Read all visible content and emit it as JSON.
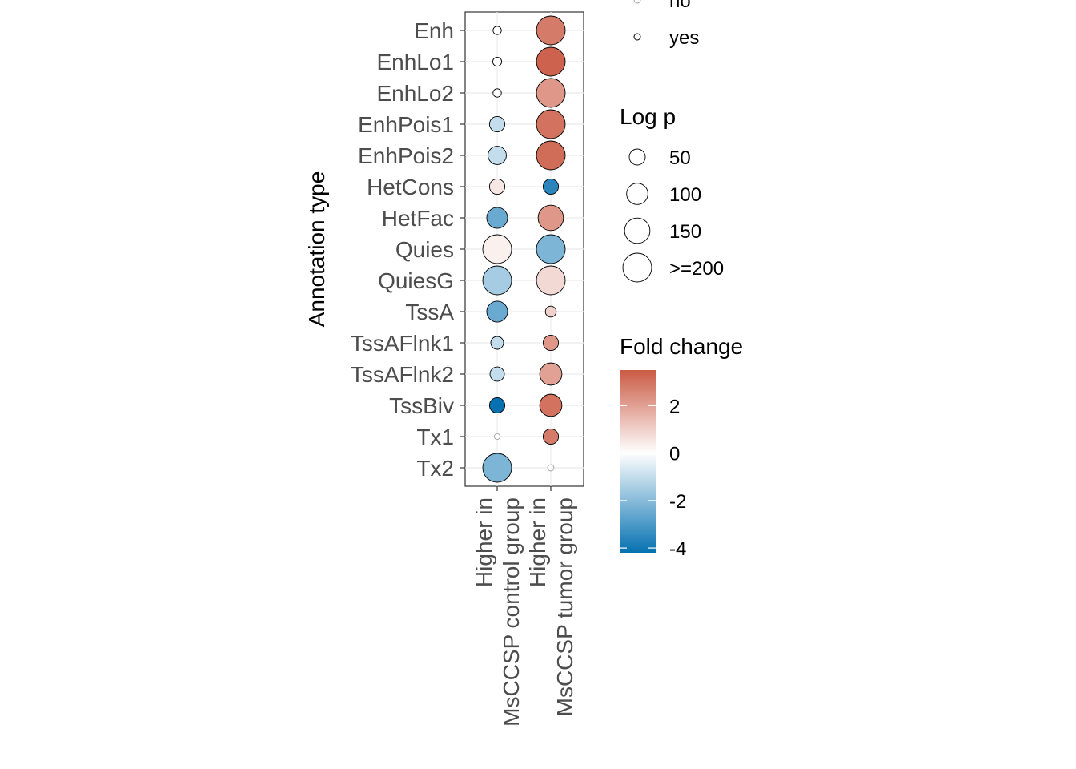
{
  "chart_data": {
    "type": "scatter",
    "ylabel": "Annotation type",
    "xlabel": "",
    "categories_x": [
      [
        "Higher in",
        "MsCCSP control group"
      ],
      [
        "Higher in",
        "MsCCSP tumor group"
      ]
    ],
    "categories_y": [
      "Enh",
      "EnhLo1",
      "EnhLo2",
      "EnhPois1",
      "EnhPois2",
      "HetCons",
      "HetFac",
      "Quies",
      "QuiesG",
      "TssA",
      "TssAFlnk1",
      "TssAFlnk2",
      "TssBiv",
      "Tx1",
      "Tx2"
    ],
    "points": [
      {
        "group": 0,
        "annotation": "Enh",
        "fold_change": 0.0,
        "log_p": 8,
        "significant": "yes"
      },
      {
        "group": 0,
        "annotation": "EnhLo1",
        "fold_change": 0.0,
        "log_p": 10,
        "significant": "yes"
      },
      {
        "group": 0,
        "annotation": "EnhLo2",
        "fold_change": 0.0,
        "log_p": 8,
        "significant": "yes"
      },
      {
        "group": 0,
        "annotation": "EnhPois1",
        "fold_change": -1.0,
        "log_p": 45,
        "significant": "yes"
      },
      {
        "group": 0,
        "annotation": "EnhPois2",
        "fold_change": -1.0,
        "log_p": 70,
        "significant": "yes"
      },
      {
        "group": 0,
        "annotation": "HetCons",
        "fold_change": 0.5,
        "log_p": 45,
        "significant": "yes"
      },
      {
        "group": 0,
        "annotation": "HetFac",
        "fold_change": -2.5,
        "log_p": 95,
        "significant": "yes"
      },
      {
        "group": 0,
        "annotation": "Quies",
        "fold_change": 0.3,
        "log_p": 200,
        "significant": "yes"
      },
      {
        "group": 0,
        "annotation": "QuiesG",
        "fold_change": -1.5,
        "log_p": 200,
        "significant": "yes"
      },
      {
        "group": 0,
        "annotation": "TssA",
        "fold_change": -2.5,
        "log_p": 95,
        "significant": "yes"
      },
      {
        "group": 0,
        "annotation": "TssAFlnk1",
        "fold_change": -1.0,
        "log_p": 28,
        "significant": "yes"
      },
      {
        "group": 0,
        "annotation": "TssAFlnk2",
        "fold_change": -1.0,
        "log_p": 38,
        "significant": "yes"
      },
      {
        "group": 0,
        "annotation": "TssBiv",
        "fold_change": -4.2,
        "log_p": 45,
        "significant": "yes"
      },
      {
        "group": 0,
        "annotation": "Tx1",
        "fold_change": 0.0,
        "log_p": 2,
        "significant": "no"
      },
      {
        "group": 0,
        "annotation": "Tx2",
        "fold_change": -2.2,
        "log_p": 200,
        "significant": "yes"
      },
      {
        "group": 1,
        "annotation": "Enh",
        "fold_change": 2.8,
        "log_p": 200,
        "significant": "yes"
      },
      {
        "group": 1,
        "annotation": "EnhLo1",
        "fold_change": 3.3,
        "log_p": 200,
        "significant": "yes"
      },
      {
        "group": 1,
        "annotation": "EnhLo2",
        "fold_change": 2.2,
        "log_p": 200,
        "significant": "yes"
      },
      {
        "group": 1,
        "annotation": "EnhPois1",
        "fold_change": 3.0,
        "log_p": 200,
        "significant": "yes"
      },
      {
        "group": 1,
        "annotation": "EnhPois2",
        "fold_change": 3.1,
        "log_p": 200,
        "significant": "yes"
      },
      {
        "group": 1,
        "annotation": "HetCons",
        "fold_change": -3.6,
        "log_p": 45,
        "significant": "yes"
      },
      {
        "group": 1,
        "annotation": "HetFac",
        "fold_change": 2.2,
        "log_p": 150,
        "significant": "yes"
      },
      {
        "group": 1,
        "annotation": "Quies",
        "fold_change": -2.2,
        "log_p": 200,
        "significant": "yes"
      },
      {
        "group": 1,
        "annotation": "QuiesG",
        "fold_change": 0.8,
        "log_p": 200,
        "significant": "yes"
      },
      {
        "group": 1,
        "annotation": "TssA",
        "fold_change": 1.0,
        "log_p": 18,
        "significant": "yes"
      },
      {
        "group": 1,
        "annotation": "TssAFlnk1",
        "fold_change": 2.2,
        "log_p": 45,
        "significant": "yes"
      },
      {
        "group": 1,
        "annotation": "TssAFlnk2",
        "fold_change": 2.0,
        "log_p": 110,
        "significant": "yes"
      },
      {
        "group": 1,
        "annotation": "TssBiv",
        "fold_change": 3.0,
        "log_p": 110,
        "significant": "yes"
      },
      {
        "group": 1,
        "annotation": "Tx1",
        "fold_change": 2.8,
        "log_p": 45,
        "significant": "yes"
      },
      {
        "group": 1,
        "annotation": "Tx2",
        "fold_change": 0.0,
        "log_p": 3,
        "significant": "no"
      }
    ],
    "legend_significance": {
      "title": "",
      "entries": [
        "no",
        "yes"
      ]
    },
    "legend_size": {
      "title": "Log p",
      "entries": [
        {
          "label": "50",
          "value": 50
        },
        {
          "label": "100",
          "value": 100
        },
        {
          "label": "150",
          "value": 150
        },
        {
          "label": ">=200",
          "value": 200
        }
      ]
    },
    "legend_color": {
      "title": "Fold change",
      "ticks": [
        {
          "label": "2",
          "value": 2
        },
        {
          "label": "0",
          "value": 0
        },
        {
          "label": "-2",
          "value": -2
        },
        {
          "label": "-4",
          "value": -4
        }
      ],
      "range": [
        -4.2,
        3.5
      ]
    },
    "colors": {
      "low": "#0571b0",
      "mid": "#ffffff",
      "high": "#ca5a44"
    },
    "grid": true,
    "legend_position": "right"
  }
}
